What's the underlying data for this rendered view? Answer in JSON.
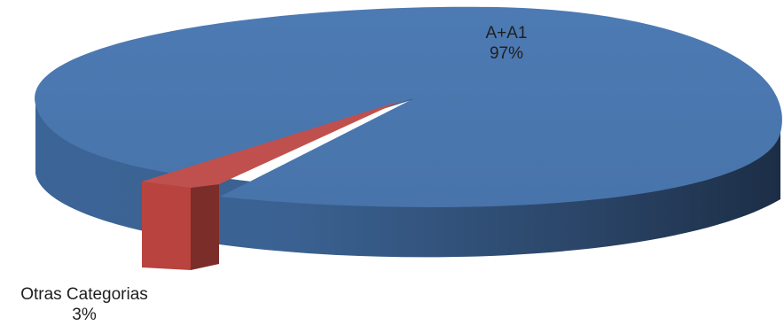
{
  "chart_data": {
    "type": "pie",
    "variant": "3d",
    "slices": [
      {
        "name": "A+A1",
        "value": 97,
        "label": "97%",
        "color": "#4a78b0"
      },
      {
        "name": "Otras Categorias",
        "value": 3,
        "label": "3%",
        "color": "#c0504d",
        "exploded": true
      }
    ],
    "legend": "none"
  }
}
